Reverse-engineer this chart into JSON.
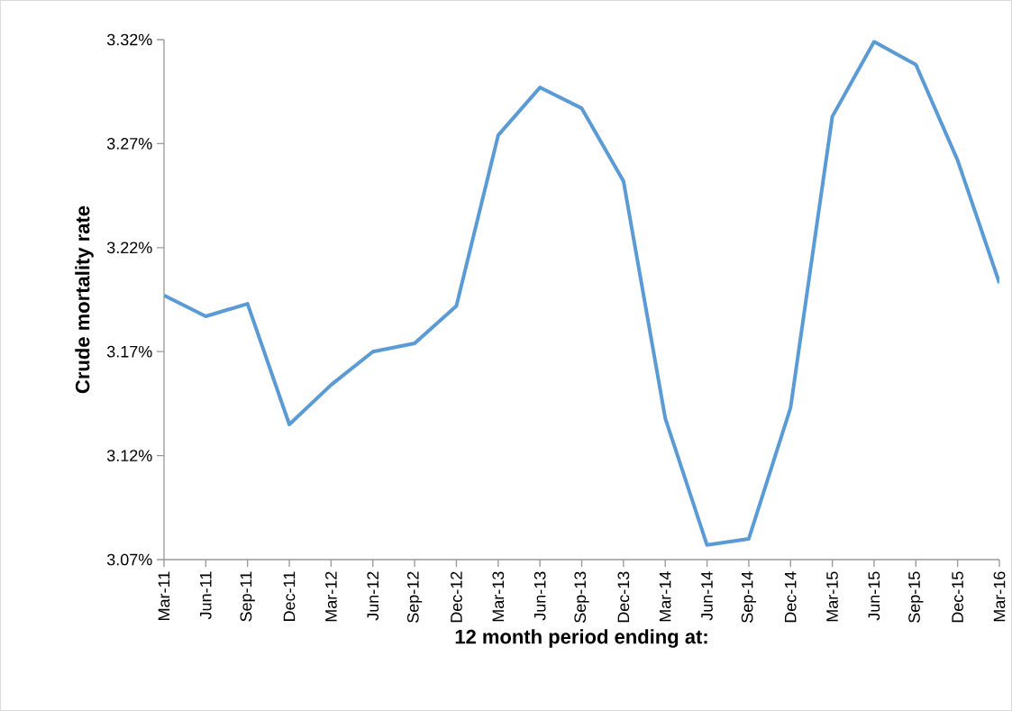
{
  "chart_data": {
    "type": "line",
    "xlabel": "12 month period ending at:",
    "ylabel": "Crude mortality rate",
    "categories": [
      "Mar-11",
      "Jun-11",
      "Sep-11",
      "Dec-11",
      "Mar-12",
      "Jun-12",
      "Sep-12",
      "Dec-12",
      "Mar-13",
      "Jun-13",
      "Sep-13",
      "Dec-13",
      "Mar-14",
      "Jun-14",
      "Sep-14",
      "Dec-14",
      "Mar-15",
      "Jun-15",
      "Sep-15",
      "Dec-15",
      "Mar-16"
    ],
    "values": [
      3.197,
      3.187,
      3.193,
      3.135,
      3.154,
      3.17,
      3.174,
      3.192,
      3.274,
      3.297,
      3.287,
      3.252,
      3.138,
      3.077,
      3.08,
      3.143,
      3.283,
      3.319,
      3.308,
      3.262,
      3.203
    ],
    "color": "#5b9bd5",
    "ylim": [
      3.07,
      3.32
    ],
    "yticks": [
      {
        "value": 3.07,
        "label": "3.07%"
      },
      {
        "value": 3.12,
        "label": "3.12%"
      },
      {
        "value": 3.17,
        "label": "3.17%"
      },
      {
        "value": 3.22,
        "label": "3.22%"
      },
      {
        "value": 3.27,
        "label": "3.27%"
      },
      {
        "value": 3.32,
        "label": "3.32%"
      }
    ]
  }
}
